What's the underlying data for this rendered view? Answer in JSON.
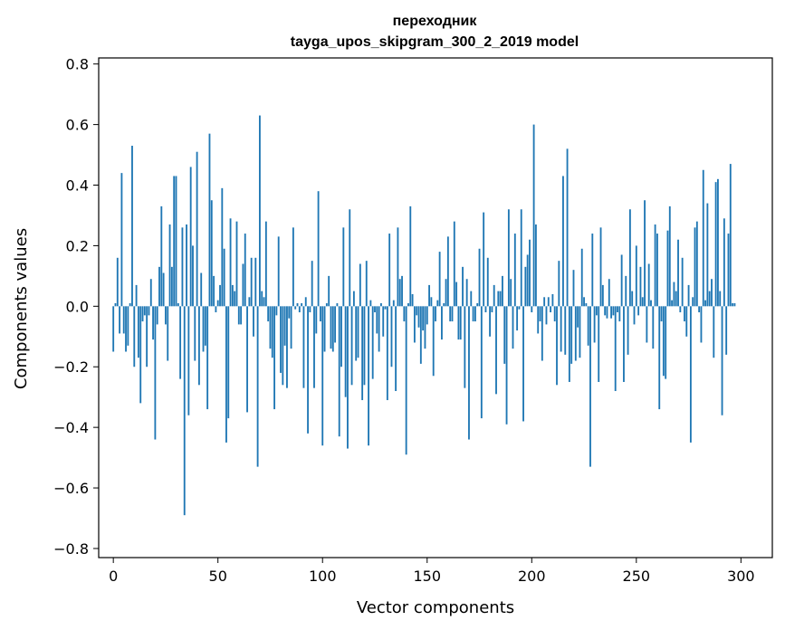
{
  "chart_data": {
    "type": "bar",
    "title": "переходник",
    "subtitle": "tayga_upos_skipgram_300_2_2019 model",
    "xlabel": "Vector components",
    "ylabel": "Components values",
    "xlim": [
      -7,
      315
    ],
    "ylim": [
      -0.83,
      0.82
    ],
    "xticks": [
      0,
      50,
      100,
      150,
      200,
      250,
      300
    ],
    "yticks": [
      -0.8,
      -0.6,
      -0.4,
      -0.2,
      0.0,
      0.2,
      0.4,
      0.6,
      0.8
    ],
    "xtick_labels": [
      "0",
      "50",
      "100",
      "150",
      "200",
      "250",
      "300"
    ],
    "ytick_labels": [
      "−0.8",
      "−0.6",
      "−0.4",
      "−0.2",
      "0.0",
      "0.2",
      "0.4",
      "0.6",
      "0.8"
    ],
    "grid": false,
    "bar_color": "#1f77b4",
    "values": [
      -0.15,
      0.01,
      0.16,
      -0.09,
      0.44,
      -0.09,
      -0.15,
      -0.13,
      0.01,
      0.53,
      -0.2,
      0.07,
      -0.17,
      -0.32,
      -0.05,
      -0.03,
      -0.2,
      -0.03,
      0.09,
      -0.11,
      -0.44,
      -0.06,
      0.13,
      0.33,
      0.11,
      -0.06,
      -0.18,
      0.27,
      0.13,
      0.43,
      0.43,
      0.01,
      -0.24,
      0.26,
      -0.69,
      0.27,
      -0.36,
      0.46,
      0.2,
      -0.18,
      0.51,
      -0.26,
      0.11,
      -0.15,
      -0.13,
      -0.34,
      0.57,
      0.35,
      0.1,
      -0.02,
      0.02,
      0.07,
      0.39,
      0.19,
      -0.45,
      -0.37,
      0.29,
      0.07,
      0.05,
      0.28,
      -0.06,
      -0.06,
      0.14,
      0.24,
      -0.35,
      0.03,
      0.16,
      -0.1,
      0.16,
      -0.53,
      0.63,
      0.05,
      0.03,
      0.28,
      -0.05,
      -0.14,
      -0.17,
      -0.34,
      -0.03,
      0.23,
      -0.22,
      -0.26,
      -0.13,
      -0.27,
      -0.04,
      -0.14,
      0.26,
      -0.01,
      0.01,
      -0.02,
      0.01,
      -0.27,
      0.03,
      -0.42,
      -0.02,
      0.15,
      -0.27,
      -0.09,
      0.38,
      -0.05,
      -0.46,
      -0.15,
      0.01,
      0.1,
      -0.14,
      -0.15,
      -0.12,
      0.01,
      -0.43,
      -0.2,
      0.26,
      -0.3,
      -0.47,
      0.32,
      -0.26,
      0.05,
      -0.18,
      -0.17,
      0.14,
      -0.31,
      -0.26,
      0.15,
      -0.46,
      0.02,
      -0.24,
      -0.02,
      -0.09,
      -0.15,
      0.01,
      -0.1,
      -0.01,
      -0.31,
      0.24,
      -0.2,
      0.02,
      -0.28,
      0.26,
      0.09,
      0.1,
      -0.05,
      -0.49,
      0.01,
      0.33,
      0.04,
      -0.12,
      -0.03,
      -0.07,
      -0.19,
      -0.08,
      -0.14,
      -0.06,
      0.07,
      0.03,
      -0.23,
      -0.05,
      0.02,
      0.18,
      -0.11,
      0.01,
      0.09,
      0.23,
      -0.05,
      -0.05,
      0.28,
      0.08,
      -0.11,
      -0.11,
      0.13,
      -0.27,
      0.09,
      -0.44,
      0.05,
      -0.05,
      -0.05,
      0.01,
      0.19,
      -0.37,
      0.31,
      -0.02,
      0.16,
      -0.1,
      -0.02,
      0.07,
      -0.29,
      0.05,
      0.05,
      0.1,
      -0.19,
      -0.39,
      0.32,
      0.09,
      -0.14,
      0.24,
      -0.08,
      -0.01,
      0.32,
      -0.38,
      0.13,
      0.17,
      0.22,
      -0.02,
      0.6,
      0.27,
      -0.09,
      -0.05,
      -0.18,
      0.03,
      -0.06,
      0.03,
      -0.02,
      0.04,
      -0.05,
      -0.26,
      0.15,
      -0.15,
      0.43,
      -0.16,
      0.52,
      -0.25,
      -0.19,
      0.12,
      -0.18,
      -0.07,
      -0.17,
      0.19,
      0.03,
      0.01,
      -0.13,
      -0.53,
      0.24,
      -0.12,
      -0.03,
      -0.25,
      0.26,
      0.07,
      -0.03,
      -0.04,
      0.09,
      -0.04,
      -0.03,
      -0.28,
      -0.02,
      -0.05,
      0.17,
      -0.25,
      0.1,
      -0.16,
      0.32,
      0.05,
      -0.06,
      0.2,
      -0.03,
      0.13,
      0.03,
      0.35,
      -0.12,
      0.14,
      0.02,
      -0.14,
      0.27,
      0.24,
      -0.34,
      -0.05,
      -0.23,
      -0.24,
      0.25,
      0.33,
      0.02,
      0.08,
      0.05,
      0.22,
      -0.02,
      0.16,
      -0.05,
      -0.1,
      0.07,
      -0.45,
      0.03,
      0.26,
      0.28,
      -0.02,
      -0.12,
      0.45,
      0.02,
      0.34,
      0.05,
      0.09,
      -0.17,
      0.41,
      0.42,
      0.05,
      -0.36,
      0.29,
      -0.16,
      0.24,
      0.47,
      0.01,
      0.01
    ]
  }
}
